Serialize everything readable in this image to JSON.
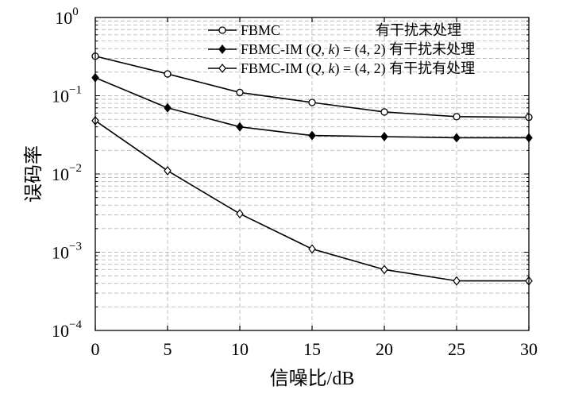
{
  "chart_data": {
    "type": "line",
    "xlabel": "信噪比/dB",
    "ylabel": "误码率",
    "x": [
      0,
      5,
      10,
      15,
      20,
      25,
      30
    ],
    "xlim": [
      0,
      30
    ],
    "ylim": [
      0.0001,
      1
    ],
    "yscale": "log",
    "grid": true,
    "x_ticks": [
      "0",
      "5",
      "10",
      "15",
      "20",
      "25",
      "30"
    ],
    "y_ticks": [
      {
        "base": "10",
        "exp": "0",
        "value": 1
      },
      {
        "base": "10",
        "exp": "−1",
        "value": 0.1
      },
      {
        "base": "10",
        "exp": "−2",
        "value": 0.01
      },
      {
        "base": "10",
        "exp": "−3",
        "value": 0.001
      },
      {
        "base": "10",
        "exp": "−4",
        "value": 0.0001
      }
    ],
    "legend_position": "top-right",
    "series": [
      {
        "legend": [
          {
            "text": "FBMC",
            "italic": false
          }
        ],
        "suffix": "有干扰未处理",
        "marker": "circle",
        "values": [
          0.32,
          0.19,
          0.11,
          0.082,
          0.062,
          0.054,
          0.053
        ]
      },
      {
        "legend": [
          {
            "text": "FBMC-IM (",
            "italic": false
          },
          {
            "text": "Q",
            "italic": true
          },
          {
            "text": ", ",
            "italic": false
          },
          {
            "text": "k",
            "italic": true
          },
          {
            "text": ") = (4, 2) 有干扰未处理",
            "italic": false
          }
        ],
        "suffix": "",
        "marker": "diamond-filled",
        "values": [
          0.17,
          0.07,
          0.04,
          0.031,
          0.03,
          0.029,
          0.029
        ]
      },
      {
        "legend": [
          {
            "text": "FBMC-IM (",
            "italic": false
          },
          {
            "text": "Q",
            "italic": true
          },
          {
            "text": ", ",
            "italic": false
          },
          {
            "text": "k",
            "italic": true
          },
          {
            "text": ") = (4, 2) 有干扰有处理",
            "italic": false
          }
        ],
        "suffix": "",
        "marker": "diamond-open",
        "values": [
          0.048,
          0.011,
          0.0031,
          0.0011,
          0.0006,
          0.00043,
          0.00043
        ]
      }
    ]
  }
}
